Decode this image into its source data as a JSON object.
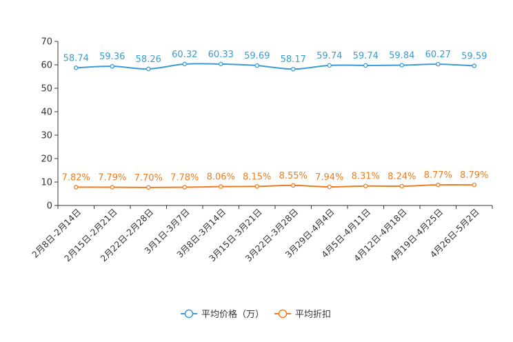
{
  "chart_data": {
    "type": "line",
    "title": "",
    "xlabel": "",
    "ylabel": "",
    "ylim": [
      0,
      70
    ],
    "yticks": [
      "0",
      "10",
      "20",
      "30",
      "40",
      "50",
      "60",
      "70"
    ],
    "grid": false,
    "legend_position": "bottom-center",
    "categories": [
      "2月8日-2月14日",
      "2月15日-2月21日",
      "2月22日-2月28日",
      "3月1日-3月7日",
      "3月8日-3月14日",
      "3月15日-3月21日",
      "3月22日-3月28日",
      "3月29日-4月4日",
      "4月5日-4月11日",
      "4月12日-4月18日",
      "4月19日-4月25日",
      "4月26日-5月2日"
    ],
    "series": [
      {
        "name": "平均价格（万）",
        "color": "#3a9bd4",
        "values": [
          58.74,
          59.36,
          58.26,
          60.32,
          60.33,
          59.69,
          58.17,
          59.74,
          59.74,
          59.84,
          60.27,
          59.59
        ],
        "labels": [
          "58.74",
          "59.36",
          "58.26",
          "60.32",
          "60.33",
          "59.69",
          "58.17",
          "59.74",
          "59.74",
          "59.84",
          "60.27",
          "59.59"
        ]
      },
      {
        "name": "平均折扣",
        "color": "#f07c1d",
        "values": [
          7.82,
          7.79,
          7.7,
          7.78,
          8.06,
          8.15,
          8.55,
          7.94,
          8.31,
          8.24,
          8.77,
          8.79
        ],
        "labels": [
          "7.82%",
          "7.79%",
          "7.70%",
          "7.78%",
          "8.06%",
          "8.15%",
          "8.55%",
          "7.94%",
          "8.31%",
          "8.24%",
          "8.77%",
          "8.79%"
        ]
      }
    ]
  }
}
